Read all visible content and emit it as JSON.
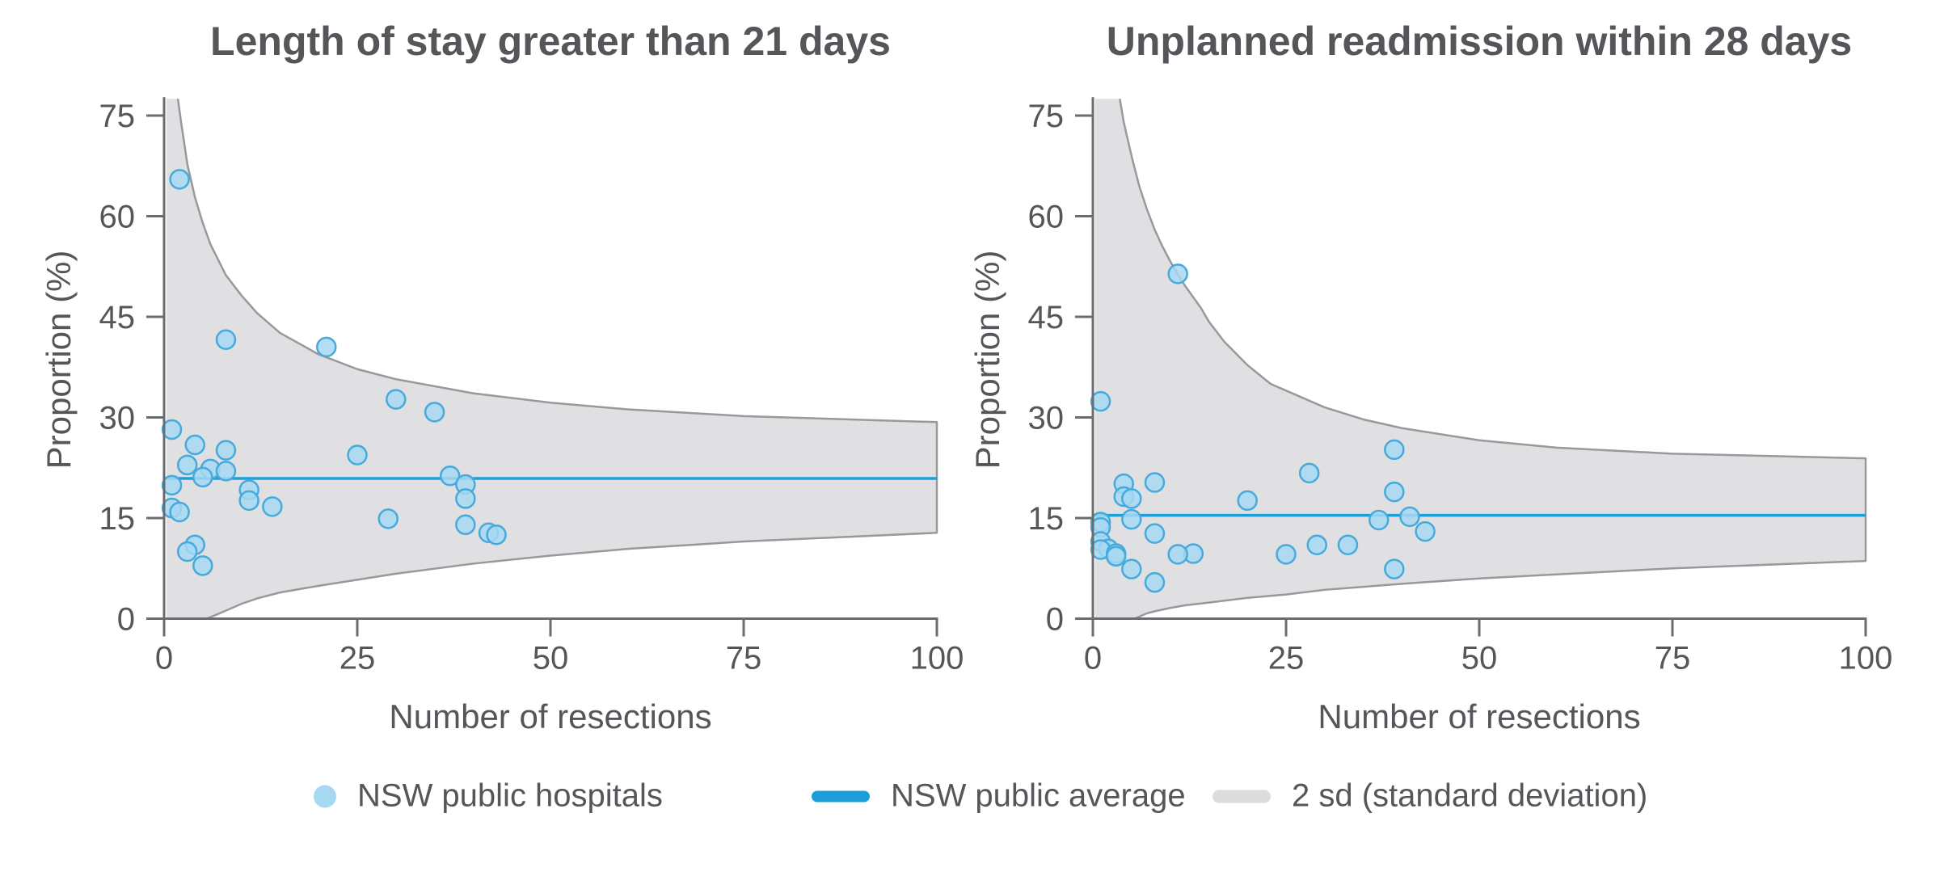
{
  "figure": {
    "background": "#ffffff",
    "kind": "funnel plot pair"
  },
  "colors": {
    "point_fill": "#A6D8F2",
    "point_stroke": "#47AADC",
    "average_line": "#1C9FD9",
    "band_fill": "#E0E0E2",
    "band_stroke": "#97999C",
    "axis": "#6A6C6F",
    "text": "#54565A"
  },
  "legend": {
    "items": [
      {
        "icon": "hospital-dot",
        "label": "NSW public hospitals"
      },
      {
        "icon": "average-line",
        "label": "NSW public average"
      },
      {
        "icon": "sd-band",
        "label": "2 sd (standard deviation)"
      }
    ]
  },
  "chart_data": [
    {
      "type": "scatter",
      "title": "Length of stay greater than 21 days",
      "xlabel": "Number of resections",
      "ylabel": "Proportion (%)",
      "xlim": [
        0,
        100
      ],
      "ylim": [
        0,
        77.5
      ],
      "x_ticks": [
        0,
        25,
        50,
        75,
        100
      ],
      "y_ticks": [
        0,
        15,
        30,
        45,
        60,
        75
      ],
      "grid": false,
      "average": 20.9,
      "series": [
        {
          "name": "NSW public hospitals",
          "points": [
            [
              2,
              65.5
            ],
            [
              8,
              41.6
            ],
            [
              21,
              40.5
            ],
            [
              30,
              32.7
            ],
            [
              35,
              30.8
            ],
            [
              1,
              28.2
            ],
            [
              4,
              25.9
            ],
            [
              8,
              25.1
            ],
            [
              25,
              24.4
            ],
            [
              3,
              22.9
            ],
            [
              6,
              22.3
            ],
            [
              8,
              22.0
            ],
            [
              5,
              21.1
            ],
            [
              37,
              21.3
            ],
            [
              39,
              20.0
            ],
            [
              1,
              19.9
            ],
            [
              11,
              19.2
            ],
            [
              39,
              17.9
            ],
            [
              11,
              17.6
            ],
            [
              14,
              16.7
            ],
            [
              1,
              16.5
            ],
            [
              2,
              15.9
            ],
            [
              29,
              14.9
            ],
            [
              39,
              14.0
            ],
            [
              42,
              12.8
            ],
            [
              43,
              12.5
            ],
            [
              4,
              11.0
            ],
            [
              3,
              10.0
            ],
            [
              5,
              7.9
            ]
          ]
        }
      ],
      "funnel_2sd": {
        "band_start_n": 0.3,
        "upper": [
          [
            1.8,
            77.4
          ],
          [
            2.2,
            74.0
          ],
          [
            2.6,
            71.0
          ],
          [
            3,
            67.8
          ],
          [
            4,
            62.8
          ],
          [
            5,
            59.0
          ],
          [
            6,
            55.8
          ],
          [
            8,
            51.2
          ],
          [
            10,
            48.2
          ],
          [
            12,
            45.6
          ],
          [
            15,
            42.6
          ],
          [
            20,
            39.4
          ],
          [
            25,
            37.2
          ],
          [
            30,
            35.7
          ],
          [
            40,
            33.6
          ],
          [
            50,
            32.2
          ],
          [
            60,
            31.2
          ],
          [
            75,
            30.2
          ],
          [
            100,
            29.3
          ]
        ],
        "lower": [
          [
            5.5,
            0
          ],
          [
            7,
            0.7
          ],
          [
            8,
            1.2
          ],
          [
            10,
            2.2
          ],
          [
            12,
            3.0
          ],
          [
            15,
            3.9
          ],
          [
            20,
            4.9
          ],
          [
            25,
            5.8
          ],
          [
            30,
            6.7
          ],
          [
            40,
            8.2
          ],
          [
            50,
            9.4
          ],
          [
            60,
            10.4
          ],
          [
            75,
            11.5
          ],
          [
            100,
            12.8
          ]
        ]
      }
    },
    {
      "type": "scatter",
      "title": "Unplanned readmission within 28 days",
      "xlabel": "Number of resections",
      "ylabel": "Proportion (%)",
      "xlim": [
        0,
        100
      ],
      "ylim": [
        0,
        77.5
      ],
      "x_ticks": [
        0,
        25,
        50,
        75,
        100
      ],
      "y_ticks": [
        0,
        15,
        30,
        45,
        60,
        75
      ],
      "grid": false,
      "average": 15.4,
      "series": [
        {
          "name": "NSW public hospitals",
          "points": [
            [
              11,
              51.4
            ],
            [
              1,
              32.4
            ],
            [
              39,
              25.2
            ],
            [
              28,
              21.7
            ],
            [
              8,
              20.3
            ],
            [
              4,
              20.1
            ],
            [
              39,
              18.9
            ],
            [
              4,
              18.2
            ],
            [
              5,
              17.9
            ],
            [
              20,
              17.6
            ],
            [
              41,
              15.2
            ],
            [
              5,
              14.8
            ],
            [
              37,
              14.7
            ],
            [
              1,
              14.4
            ],
            [
              1,
              13.6
            ],
            [
              43,
              13.0
            ],
            [
              8,
              12.7
            ],
            [
              1,
              11.5
            ],
            [
              29,
              11.0
            ],
            [
              33,
              11.0
            ],
            [
              2,
              10.4
            ],
            [
              1,
              10.3
            ],
            [
              25,
              9.6
            ],
            [
              13,
              9.7
            ],
            [
              11,
              9.6
            ],
            [
              3,
              9.7
            ],
            [
              3,
              9.3
            ],
            [
              5,
              7.4
            ],
            [
              39,
              7.4
            ],
            [
              8,
              5.4
            ]
          ]
        }
      ],
      "funnel_2sd": {
        "band_start_n": 0.3,
        "upper": [
          [
            3.5,
            77.4
          ],
          [
            4,
            74.0
          ],
          [
            5,
            69.0
          ],
          [
            6,
            64.5
          ],
          [
            7,
            61.0
          ],
          [
            8,
            58.0
          ],
          [
            9,
            55.5
          ],
          [
            10,
            53.3
          ],
          [
            11,
            51.3
          ],
          [
            12,
            49.5
          ],
          [
            14,
            46.3
          ],
          [
            15,
            44.3
          ],
          [
            17,
            41.3
          ],
          [
            20,
            37.8
          ],
          [
            23,
            35.0
          ],
          [
            25,
            34.0
          ],
          [
            30,
            31.5
          ],
          [
            35,
            29.7
          ],
          [
            40,
            28.4
          ],
          [
            50,
            26.6
          ],
          [
            60,
            25.5
          ],
          [
            75,
            24.6
          ],
          [
            100,
            23.9
          ]
        ],
        "lower": [
          [
            5.4,
            0
          ],
          [
            7,
            0.8
          ],
          [
            8,
            1.1
          ],
          [
            10,
            1.6
          ],
          [
            12,
            2.0
          ],
          [
            15,
            2.4
          ],
          [
            20,
            3.1
          ],
          [
            25,
            3.6
          ],
          [
            30,
            4.3
          ],
          [
            40,
            5.2
          ],
          [
            50,
            6.0
          ],
          [
            60,
            6.6
          ],
          [
            75,
            7.5
          ],
          [
            100,
            8.6
          ]
        ]
      }
    }
  ]
}
